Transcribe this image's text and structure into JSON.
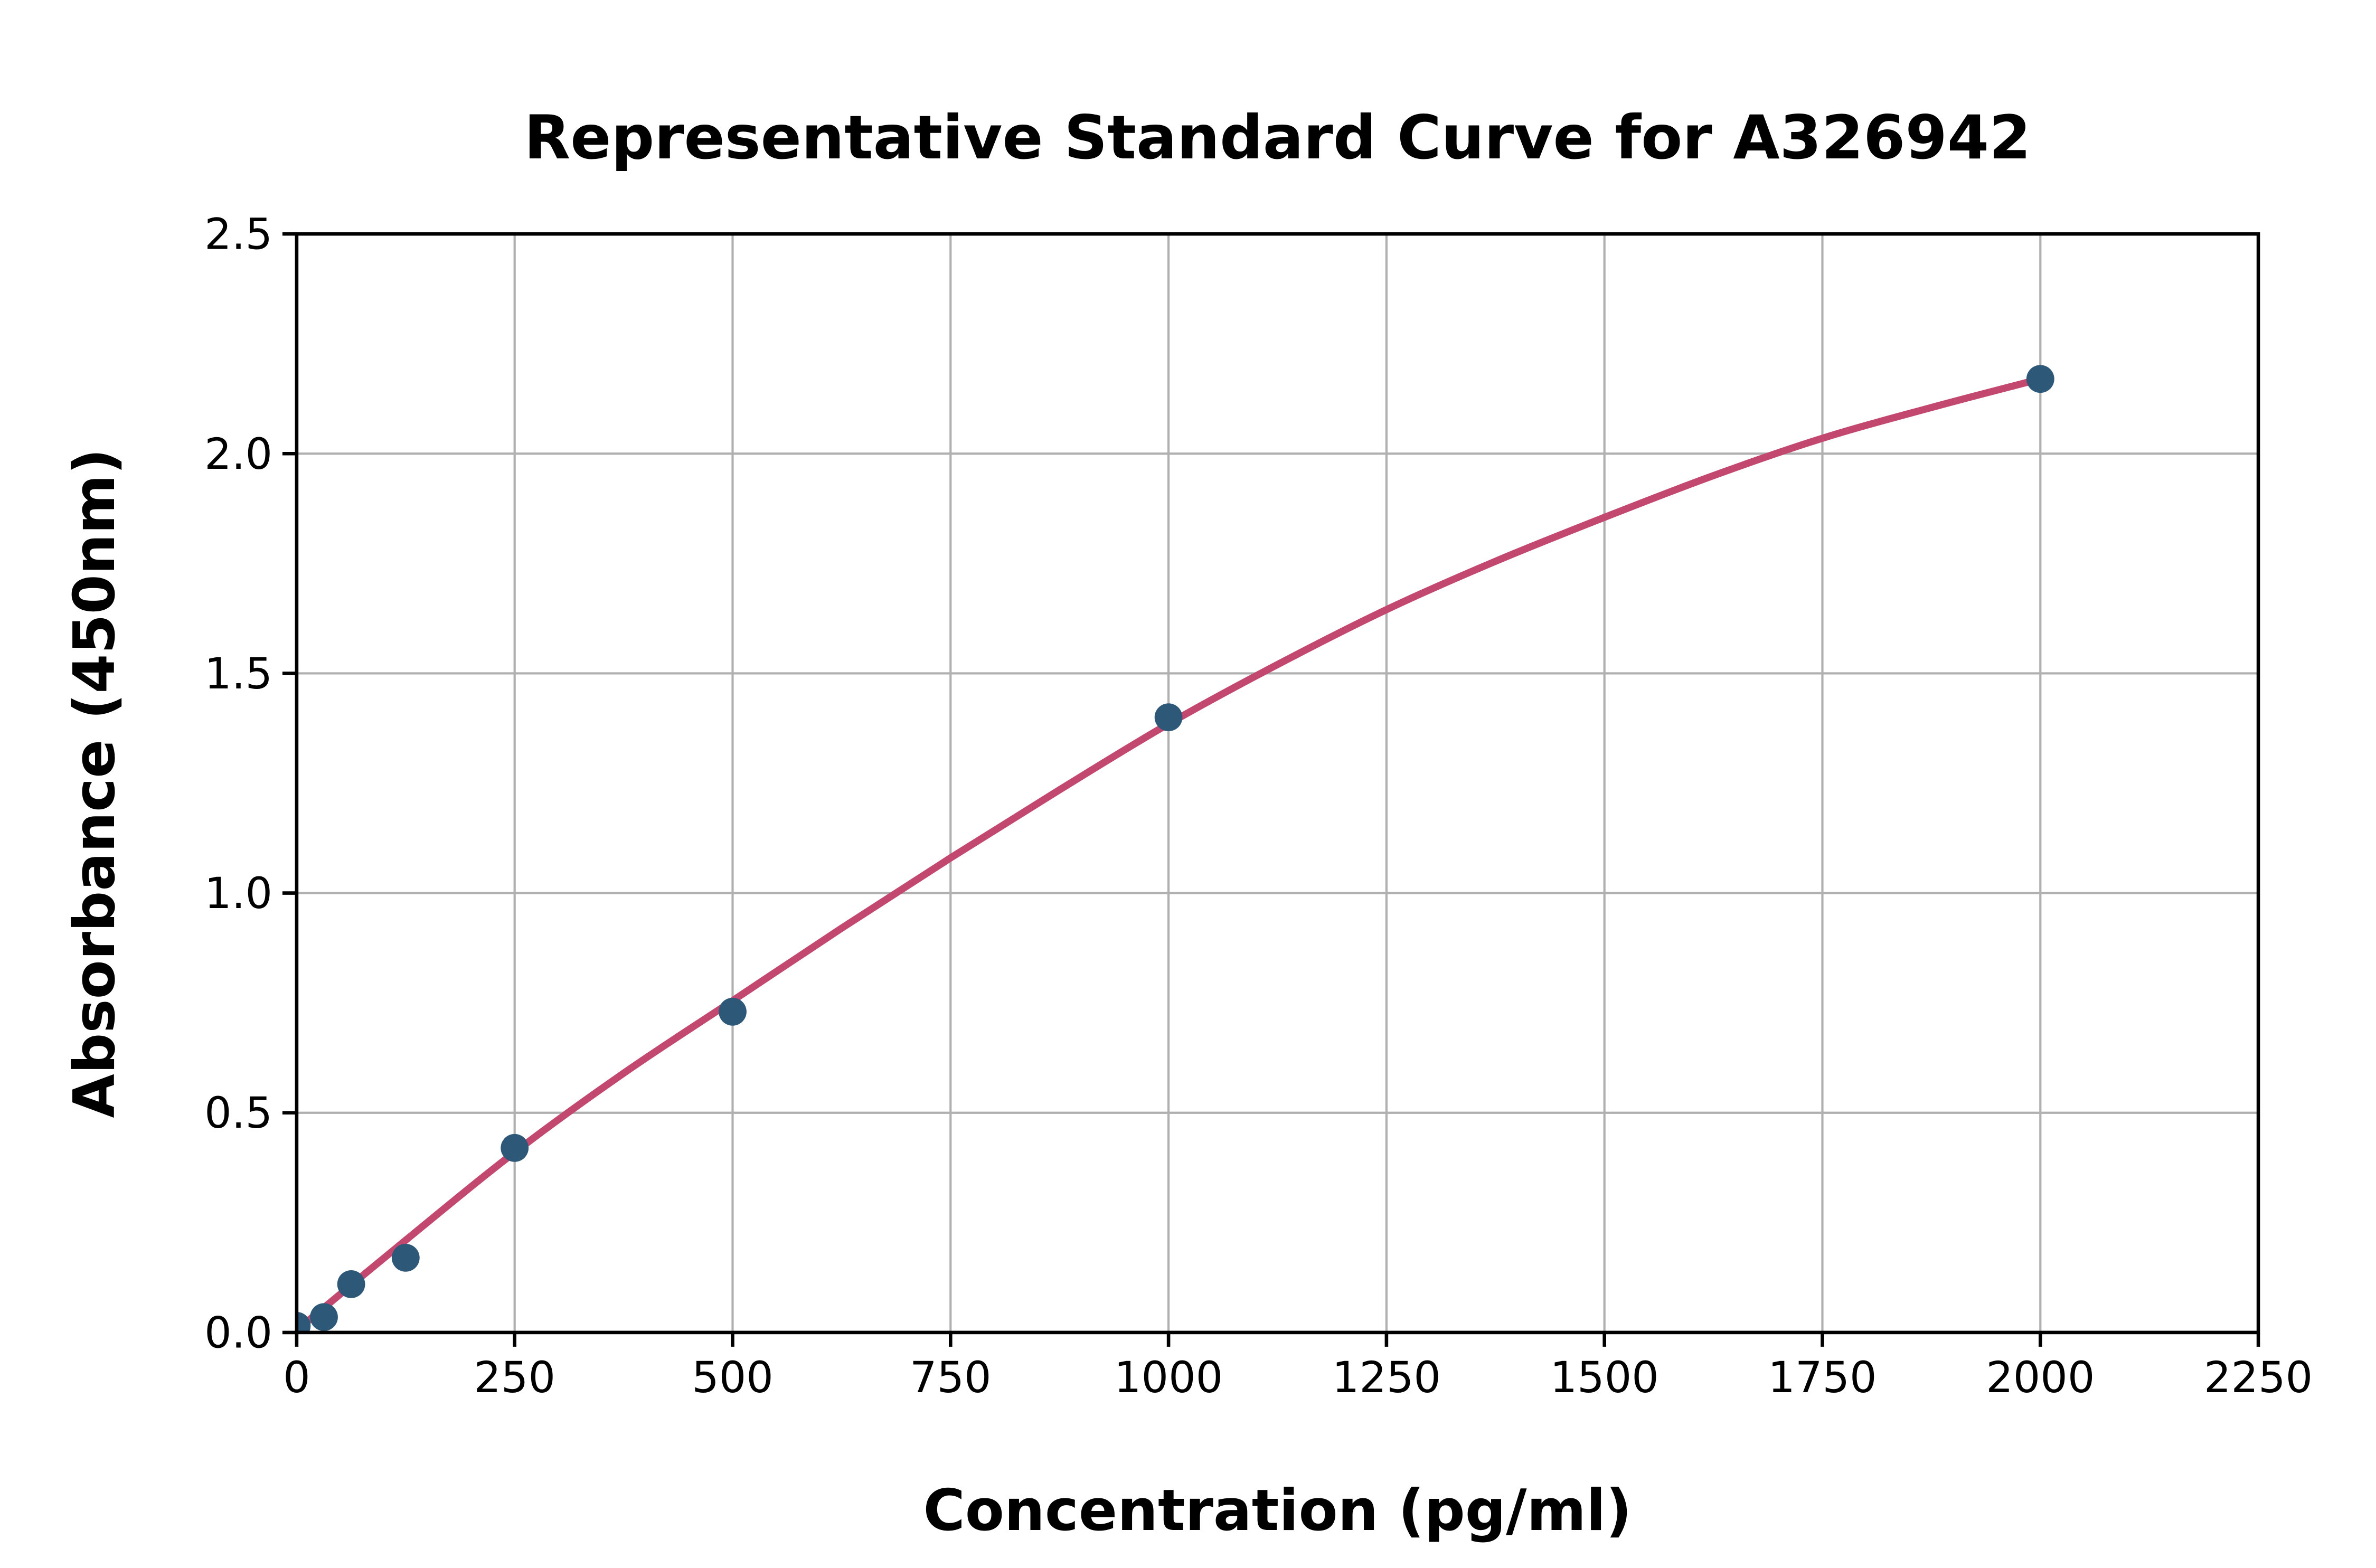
{
  "figure": {
    "background_color": "#ffffff"
  },
  "chart_data": {
    "type": "scatter",
    "title": "Representative Standard Curve for A326942",
    "xlabel": "Concentration (pg/ml)",
    "ylabel": "Absorbance (450nm)",
    "xlim": [
      0,
      2250
    ],
    "ylim": [
      0,
      2.5
    ],
    "grid": true,
    "legend_position": "none",
    "x_ticks": [
      0,
      250,
      500,
      750,
      1000,
      1250,
      1500,
      1750,
      2000,
      2250
    ],
    "x_tick_labels": [
      "0",
      "250",
      "500",
      "750",
      "1000",
      "1250",
      "1500",
      "1750",
      "2000",
      "2250"
    ],
    "y_ticks": [
      0.0,
      0.5,
      1.0,
      1.5,
      2.0,
      2.5
    ],
    "y_tick_labels": [
      "0.0",
      "0.5",
      "1.0",
      "1.5",
      "2.0",
      "2.5"
    ],
    "points": [
      {
        "x": 0,
        "y": 0.015
      },
      {
        "x": 31.25,
        "y": 0.035
      },
      {
        "x": 62.5,
        "y": 0.11
      },
      {
        "x": 125,
        "y": 0.17
      },
      {
        "x": 250,
        "y": 0.42
      },
      {
        "x": 500,
        "y": 0.73
      },
      {
        "x": 1000,
        "y": 1.4
      },
      {
        "x": 2000,
        "y": 2.17
      }
    ],
    "fit_curve": {
      "x": [
        0,
        125,
        250,
        375,
        500,
        625,
        750,
        875,
        1000,
        1125,
        1250,
        1375,
        1500,
        1625,
        1750,
        1875,
        2000
      ],
      "y": [
        0.005,
        0.21,
        0.41,
        0.59,
        0.755,
        0.92,
        1.08,
        1.235,
        1.385,
        1.52,
        1.645,
        1.755,
        1.855,
        1.95,
        2.035,
        2.105,
        2.17
      ]
    },
    "colors": {
      "point": "#2e5878",
      "curve": "#c24870",
      "grid": "#b0b0b0",
      "axis": "#000000",
      "text": "#000000",
      "background": "#ffffff"
    }
  }
}
